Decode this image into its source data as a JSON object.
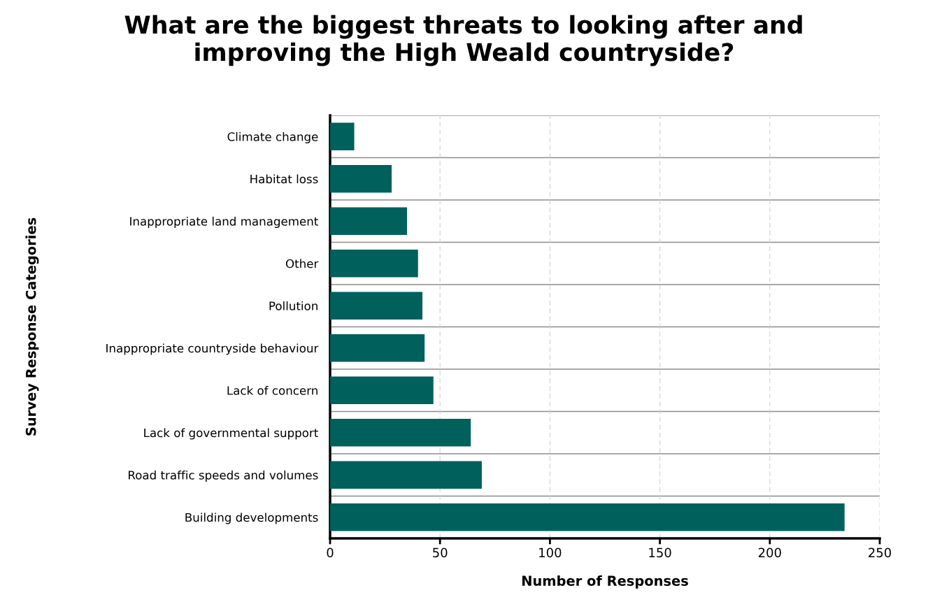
{
  "chart_data": {
    "type": "bar",
    "orientation": "horizontal",
    "title": "What are the biggest threats to looking after and\nimproving the High Weald countryside?",
    "xlabel": "Number of Responses",
    "ylabel": "Survey Response Categories",
    "categories": [
      "Climate change",
      "Habitat loss",
      "Inappropriate land management",
      "Other",
      "Pollution",
      "Inappropriate countryside behaviour",
      "Lack of concern",
      "Lack of governmental support",
      "Road traffic speeds and volumes",
      "Building developments"
    ],
    "values": [
      11,
      28,
      35,
      40,
      42,
      43,
      47,
      64,
      69,
      234
    ],
    "color": "#00605c",
    "xlim": [
      0,
      250
    ],
    "xticks": [
      0,
      50,
      100,
      150,
      200,
      250
    ],
    "grid": true
  }
}
